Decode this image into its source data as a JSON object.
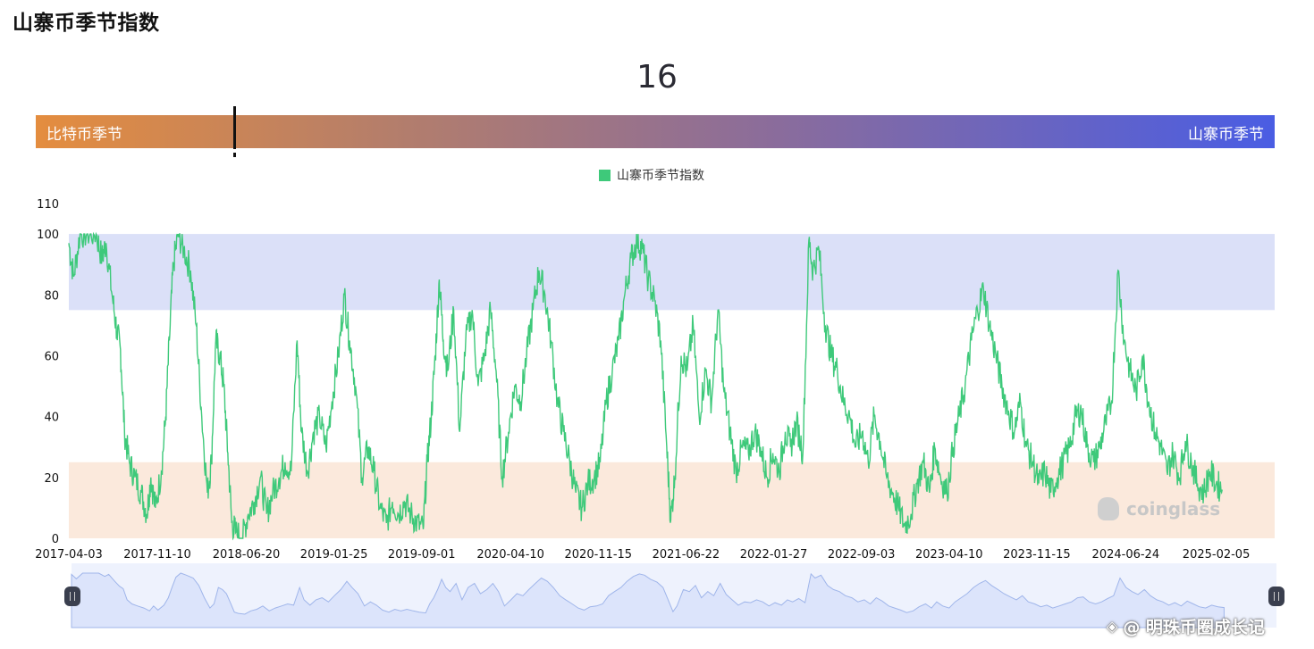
{
  "page": {
    "title": "山寨币季节指数",
    "current_value": "16",
    "gauge": {
      "left_label": "比特币季节",
      "right_label": "山寨币季节",
      "marker_value": 16,
      "min": 0,
      "max": 100
    },
    "watermark": "coinglass",
    "credit": "@ 明珠币圈成长记"
  },
  "colors": {
    "line": "#3ec97a",
    "altcoin_band": "#dbe0f8",
    "bitcoin_band": "#fbe9dc",
    "navigator_fill": "#dce4fb",
    "navigator_bg": "#eef2fd",
    "navigator_line": "#9fb5ea"
  },
  "chart_data": {
    "type": "line",
    "title": "",
    "xlabel": "",
    "ylabel": "",
    "ylim": [
      0,
      110
    ],
    "y_ticks": [
      0,
      20,
      40,
      60,
      80,
      100,
      110
    ],
    "x_ticks": [
      "2017-04-03",
      "2017-11-10",
      "2018-06-20",
      "2019-01-25",
      "2019-09-01",
      "2020-04-10",
      "2020-11-15",
      "2021-06-22",
      "2022-01-27",
      "2022-09-03",
      "2023-04-10",
      "2023-11-15",
      "2024-06-24",
      "2025-02-05"
    ],
    "x_range": [
      "2017-04-03",
      "2025-07-01"
    ],
    "legend": {
      "position": "top-center",
      "entries": [
        "山寨币季节指数"
      ]
    },
    "bands": [
      {
        "name": "altcoin-season",
        "from": 75,
        "to": 100
      },
      {
        "name": "bitcoin-season",
        "from": 0,
        "to": 25
      }
    ],
    "grid": false,
    "navigator": true,
    "series": [
      {
        "name": "山寨币季节指数",
        "points": [
          [
            "2017-04-03",
            97
          ],
          [
            "2017-04-15",
            86
          ],
          [
            "2017-05-01",
            100
          ],
          [
            "2017-05-20",
            100
          ],
          [
            "2017-06-10",
            100
          ],
          [
            "2017-06-25",
            92
          ],
          [
            "2017-07-05",
            97
          ],
          [
            "2017-07-20",
            80
          ],
          [
            "2017-08-01",
            68
          ],
          [
            "2017-08-10",
            62
          ],
          [
            "2017-08-20",
            35
          ],
          [
            "2017-09-01",
            25
          ],
          [
            "2017-09-15",
            20
          ],
          [
            "2017-10-01",
            15
          ],
          [
            "2017-10-15",
            8
          ],
          [
            "2017-10-25",
            20
          ],
          [
            "2017-11-05",
            10
          ],
          [
            "2017-11-20",
            22
          ],
          [
            "2017-12-01",
            40
          ],
          [
            "2017-12-10",
            65
          ],
          [
            "2017-12-20",
            90
          ],
          [
            "2018-01-01",
            100
          ],
          [
            "2018-01-15",
            95
          ],
          [
            "2018-02-01",
            88
          ],
          [
            "2018-02-15",
            70
          ],
          [
            "2018-03-01",
            40
          ],
          [
            "2018-03-15",
            15
          ],
          [
            "2018-03-25",
            25
          ],
          [
            "2018-04-05",
            65
          ],
          [
            "2018-04-15",
            60
          ],
          [
            "2018-04-25",
            50
          ],
          [
            "2018-05-05",
            28
          ],
          [
            "2018-05-15",
            5
          ],
          [
            "2018-05-25",
            2
          ],
          [
            "2018-06-10",
            0
          ],
          [
            "2018-06-25",
            8
          ],
          [
            "2018-07-10",
            12
          ],
          [
            "2018-07-25",
            20
          ],
          [
            "2018-08-10",
            8
          ],
          [
            "2018-08-25",
            15
          ],
          [
            "2018-09-10",
            20
          ],
          [
            "2018-09-25",
            25
          ],
          [
            "2018-10-10",
            22
          ],
          [
            "2018-10-25",
            65
          ],
          [
            "2018-11-05",
            35
          ],
          [
            "2018-11-20",
            22
          ],
          [
            "2018-12-05",
            35
          ],
          [
            "2018-12-20",
            40
          ],
          [
            "2019-01-05",
            30
          ],
          [
            "2019-01-20",
            45
          ],
          [
            "2019-02-05",
            60
          ],
          [
            "2019-02-20",
            80
          ],
          [
            "2019-03-05",
            65
          ],
          [
            "2019-03-20",
            50
          ],
          [
            "2019-04-05",
            20
          ],
          [
            "2019-04-20",
            30
          ],
          [
            "2019-05-05",
            22
          ],
          [
            "2019-05-20",
            10
          ],
          [
            "2019-06-05",
            5
          ],
          [
            "2019-06-20",
            12
          ],
          [
            "2019-07-05",
            8
          ],
          [
            "2019-07-20",
            12
          ],
          [
            "2019-08-05",
            8
          ],
          [
            "2019-08-20",
            5
          ],
          [
            "2019-09-05",
            3
          ],
          [
            "2019-09-15",
            25
          ],
          [
            "2019-09-25",
            40
          ],
          [
            "2019-10-05",
            60
          ],
          [
            "2019-10-15",
            85
          ],
          [
            "2019-10-25",
            65
          ],
          [
            "2019-11-05",
            55
          ],
          [
            "2019-11-20",
            75
          ],
          [
            "2019-12-05",
            35
          ],
          [
            "2019-12-20",
            65
          ],
          [
            "2020-01-05",
            75
          ],
          [
            "2020-01-20",
            50
          ],
          [
            "2020-02-05",
            60
          ],
          [
            "2020-02-20",
            75
          ],
          [
            "2020-03-05",
            55
          ],
          [
            "2020-03-20",
            20
          ],
          [
            "2020-04-05",
            35
          ],
          [
            "2020-04-20",
            50
          ],
          [
            "2020-05-05",
            45
          ],
          [
            "2020-05-20",
            60
          ],
          [
            "2020-06-05",
            75
          ],
          [
            "2020-06-20",
            88
          ],
          [
            "2020-07-05",
            80
          ],
          [
            "2020-07-20",
            65
          ],
          [
            "2020-08-05",
            45
          ],
          [
            "2020-08-20",
            35
          ],
          [
            "2020-09-05",
            25
          ],
          [
            "2020-09-20",
            15
          ],
          [
            "2020-10-05",
            10
          ],
          [
            "2020-10-20",
            18
          ],
          [
            "2020-11-05",
            20
          ],
          [
            "2020-11-20",
            25
          ],
          [
            "2020-12-05",
            45
          ],
          [
            "2020-12-20",
            55
          ],
          [
            "2021-01-05",
            65
          ],
          [
            "2021-01-20",
            80
          ],
          [
            "2021-02-05",
            92
          ],
          [
            "2021-02-20",
            98
          ],
          [
            "2021-03-05",
            95
          ],
          [
            "2021-03-20",
            85
          ],
          [
            "2021-04-05",
            78
          ],
          [
            "2021-04-20",
            65
          ],
          [
            "2021-05-05",
            30
          ],
          [
            "2021-05-15",
            6
          ],
          [
            "2021-05-25",
            20
          ],
          [
            "2021-06-10",
            60
          ],
          [
            "2021-06-25",
            55
          ],
          [
            "2021-07-10",
            70
          ],
          [
            "2021-07-25",
            40
          ],
          [
            "2021-08-10",
            55
          ],
          [
            "2021-08-25",
            45
          ],
          [
            "2021-09-10",
            75
          ],
          [
            "2021-09-25",
            48
          ],
          [
            "2021-10-10",
            35
          ],
          [
            "2021-10-25",
            22
          ],
          [
            "2021-11-10",
            30
          ],
          [
            "2021-11-25",
            28
          ],
          [
            "2021-12-10",
            35
          ],
          [
            "2021-12-25",
            30
          ],
          [
            "2022-01-10",
            20
          ],
          [
            "2022-01-25",
            28
          ],
          [
            "2022-02-10",
            22
          ],
          [
            "2022-02-25",
            35
          ],
          [
            "2022-03-10",
            30
          ],
          [
            "2022-03-25",
            38
          ],
          [
            "2022-04-10",
            28
          ],
          [
            "2022-04-25",
            98
          ],
          [
            "2022-05-05",
            88
          ],
          [
            "2022-05-20",
            95
          ],
          [
            "2022-06-05",
            70
          ],
          [
            "2022-06-20",
            60
          ],
          [
            "2022-07-05",
            55
          ],
          [
            "2022-07-20",
            45
          ],
          [
            "2022-08-05",
            40
          ],
          [
            "2022-08-20",
            30
          ],
          [
            "2022-09-05",
            35
          ],
          [
            "2022-09-20",
            25
          ],
          [
            "2022-10-05",
            40
          ],
          [
            "2022-10-20",
            32
          ],
          [
            "2022-11-05",
            20
          ],
          [
            "2022-11-20",
            15
          ],
          [
            "2022-12-05",
            10
          ],
          [
            "2022-12-20",
            4
          ],
          [
            "2023-01-05",
            8
          ],
          [
            "2023-01-20",
            18
          ],
          [
            "2023-02-05",
            25
          ],
          [
            "2023-02-20",
            15
          ],
          [
            "2023-03-05",
            30
          ],
          [
            "2023-03-20",
            20
          ],
          [
            "2023-04-05",
            15
          ],
          [
            "2023-04-20",
            30
          ],
          [
            "2023-05-05",
            40
          ],
          [
            "2023-05-20",
            50
          ],
          [
            "2023-06-05",
            65
          ],
          [
            "2023-06-20",
            75
          ],
          [
            "2023-07-05",
            82
          ],
          [
            "2023-07-20",
            70
          ],
          [
            "2023-08-05",
            60
          ],
          [
            "2023-08-20",
            50
          ],
          [
            "2023-09-05",
            42
          ],
          [
            "2023-09-20",
            35
          ],
          [
            "2023-10-05",
            45
          ],
          [
            "2023-10-20",
            30
          ],
          [
            "2023-11-05",
            25
          ],
          [
            "2023-11-20",
            18
          ],
          [
            "2023-12-05",
            22
          ],
          [
            "2023-12-20",
            15
          ],
          [
            "2024-01-05",
            20
          ],
          [
            "2024-01-20",
            25
          ],
          [
            "2024-02-05",
            30
          ],
          [
            "2024-02-20",
            40
          ],
          [
            "2024-03-05",
            42
          ],
          [
            "2024-03-20",
            30
          ],
          [
            "2024-04-05",
            25
          ],
          [
            "2024-04-20",
            30
          ],
          [
            "2024-05-05",
            38
          ],
          [
            "2024-05-20",
            45
          ],
          [
            "2024-06-05",
            88
          ],
          [
            "2024-06-20",
            65
          ],
          [
            "2024-07-05",
            55
          ],
          [
            "2024-07-20",
            48
          ],
          [
            "2024-08-05",
            60
          ],
          [
            "2024-08-20",
            45
          ],
          [
            "2024-09-05",
            35
          ],
          [
            "2024-09-20",
            30
          ],
          [
            "2024-10-05",
            22
          ],
          [
            "2024-10-20",
            28
          ],
          [
            "2024-11-05",
            20
          ],
          [
            "2024-11-20",
            32
          ],
          [
            "2024-12-05",
            25
          ],
          [
            "2024-12-20",
            18
          ],
          [
            "2025-01-05",
            15
          ],
          [
            "2025-01-20",
            22
          ],
          [
            "2025-02-05",
            18
          ],
          [
            "2025-02-20",
            16
          ]
        ]
      }
    ]
  }
}
